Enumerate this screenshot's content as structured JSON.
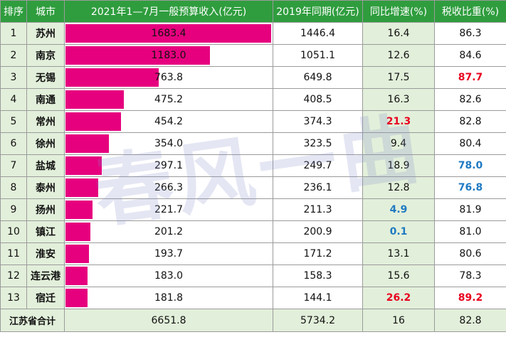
{
  "headers": {
    "rank": "排序",
    "city": "城市",
    "revenue_2021": "2021年1—7月一般预算收入(亿元)",
    "period_2019": "2019年同期(亿元)",
    "growth": "同比增速(%)",
    "tax_ratio": "税收比重(%)"
  },
  "rows": [
    {
      "rank": "1",
      "city": "苏州",
      "revenue": "1683.4",
      "revenue_value": 1683.4,
      "period_2019": "1446.4",
      "growth": "16.4",
      "growth_color": "",
      "tax_ratio": "86.3",
      "tax_color": ""
    },
    {
      "rank": "2",
      "city": "南京",
      "revenue": "1183.0",
      "revenue_value": 1183.0,
      "period_2019": "1051.1",
      "growth": "12.6",
      "growth_color": "",
      "tax_ratio": "84.6",
      "tax_color": ""
    },
    {
      "rank": "3",
      "city": "无锡",
      "revenue": "763.8",
      "revenue_value": 763.8,
      "period_2019": "649.8",
      "growth": "17.5",
      "growth_color": "",
      "tax_ratio": "87.7",
      "tax_color": "red"
    },
    {
      "rank": "4",
      "city": "南通",
      "revenue": "475.2",
      "revenue_value": 475.2,
      "period_2019": "408.5",
      "growth": "16.3",
      "growth_color": "",
      "tax_ratio": "82.6",
      "tax_color": ""
    },
    {
      "rank": "5",
      "city": "常州",
      "revenue": "454.2",
      "revenue_value": 454.2,
      "period_2019": "374.3",
      "growth": "21.3",
      "growth_color": "red",
      "tax_ratio": "82.8",
      "tax_color": ""
    },
    {
      "rank": "6",
      "city": "徐州",
      "revenue": "354.0",
      "revenue_value": 354.0,
      "period_2019": "323.5",
      "growth": "9.4",
      "growth_color": "",
      "tax_ratio": "80.4",
      "tax_color": ""
    },
    {
      "rank": "7",
      "city": "盐城",
      "revenue": "297.1",
      "revenue_value": 297.1,
      "period_2019": "249.7",
      "growth": "18.9",
      "growth_color": "",
      "tax_ratio": "78.0",
      "tax_color": "blue"
    },
    {
      "rank": "8",
      "city": "泰州",
      "revenue": "266.3",
      "revenue_value": 266.3,
      "period_2019": "236.1",
      "growth": "12.8",
      "growth_color": "",
      "tax_ratio": "76.8",
      "tax_color": "blue"
    },
    {
      "rank": "9",
      "city": "扬州",
      "revenue": "221.7",
      "revenue_value": 221.7,
      "period_2019": "211.3",
      "growth": "4.9",
      "growth_color": "blue",
      "tax_ratio": "81.9",
      "tax_color": ""
    },
    {
      "rank": "10",
      "city": "镇江",
      "revenue": "201.2",
      "revenue_value": 201.2,
      "period_2019": "200.9",
      "growth": "0.1",
      "growth_color": "blue",
      "tax_ratio": "81.0",
      "tax_color": ""
    },
    {
      "rank": "11",
      "city": "淮安",
      "revenue": "193.7",
      "revenue_value": 193.7,
      "period_2019": "171.2",
      "growth": "13.1",
      "growth_color": "",
      "tax_ratio": "80.6",
      "tax_color": ""
    },
    {
      "rank": "12",
      "city": "连云港",
      "revenue": "183.0",
      "revenue_value": 183.0,
      "period_2019": "158.3",
      "growth": "15.6",
      "growth_color": "",
      "tax_ratio": "78.3",
      "tax_color": ""
    },
    {
      "rank": "13",
      "city": "宿迁",
      "revenue": "181.8",
      "revenue_value": 181.8,
      "period_2019": "144.1",
      "growth": "26.2",
      "growth_color": "red",
      "tax_ratio": "89.2",
      "tax_color": "red"
    }
  ],
  "total": {
    "label": "江苏省合计",
    "revenue": "6651.8",
    "period_2019": "5734.2",
    "growth": "16",
    "tax_ratio": "82.8"
  },
  "watermark": "春风一曲",
  "colors": {
    "header_bg": "#2f9d3e",
    "bar": "#e6007e",
    "light_green": "#e2efda",
    "highlight_red": "#e8001f",
    "highlight_blue": "#1f7ac2"
  }
}
